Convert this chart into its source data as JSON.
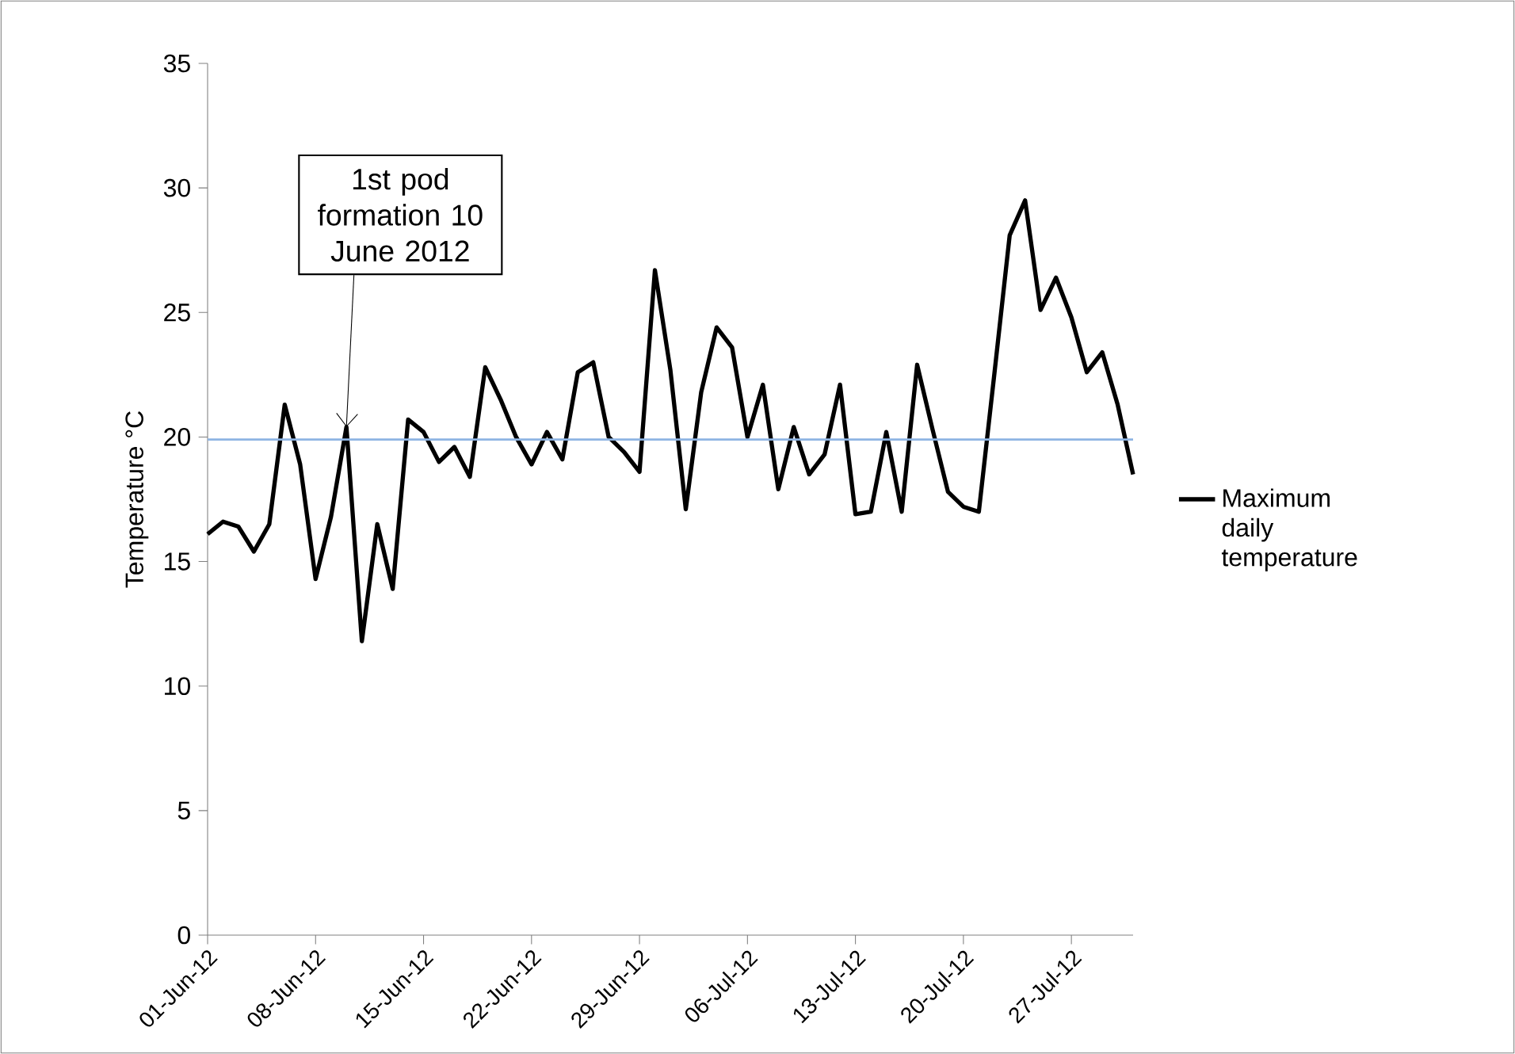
{
  "chart_data": {
    "type": "line",
    "ylabel": "Temperature °C",
    "x": [
      "2012-06-01",
      "2012-06-02",
      "2012-06-03",
      "2012-06-04",
      "2012-06-05",
      "2012-06-06",
      "2012-06-07",
      "2012-06-08",
      "2012-06-09",
      "2012-06-10",
      "2012-06-11",
      "2012-06-12",
      "2012-06-13",
      "2012-06-14",
      "2012-06-15",
      "2012-06-16",
      "2012-06-17",
      "2012-06-18",
      "2012-06-19",
      "2012-06-20",
      "2012-06-21",
      "2012-06-22",
      "2012-06-23",
      "2012-06-24",
      "2012-06-25",
      "2012-06-26",
      "2012-06-27",
      "2012-06-28",
      "2012-06-29",
      "2012-06-30",
      "2012-07-01",
      "2012-07-02",
      "2012-07-03",
      "2012-07-04",
      "2012-07-05",
      "2012-07-06",
      "2012-07-07",
      "2012-07-08",
      "2012-07-09",
      "2012-07-10",
      "2012-07-11",
      "2012-07-12",
      "2012-07-13",
      "2012-07-14",
      "2012-07-15",
      "2012-07-16",
      "2012-07-17",
      "2012-07-18",
      "2012-07-19",
      "2012-07-20",
      "2012-07-21",
      "2012-07-22",
      "2012-07-23",
      "2012-07-24",
      "2012-07-25",
      "2012-07-26",
      "2012-07-27",
      "2012-07-28",
      "2012-07-29",
      "2012-07-30",
      "2012-07-31"
    ],
    "series": [
      {
        "name": "Maximum daily temperature",
        "color": "#000000",
        "values": [
          16.1,
          16.6,
          16.4,
          15.4,
          16.5,
          21.3,
          18.9,
          14.3,
          16.8,
          20.4,
          11.8,
          16.5,
          13.9,
          20.7,
          20.2,
          19.0,
          19.6,
          18.4,
          22.8,
          21.5,
          20.0,
          18.9,
          20.2,
          19.1,
          22.6,
          23.0,
          20.0,
          19.4,
          18.6,
          26.7,
          22.7,
          17.1,
          21.8,
          24.4,
          23.6,
          20.0,
          22.1,
          17.9,
          20.4,
          18.5,
          19.3,
          22.1,
          16.9,
          17.0,
          20.2,
          17.0,
          22.9,
          20.3,
          17.8,
          17.2,
          17.0,
          22.5,
          28.1,
          29.5,
          25.1,
          26.4,
          24.8,
          22.6,
          23.4,
          21.3,
          18.5
        ]
      }
    ],
    "xlim": [
      "2012-06-01",
      "2012-07-31"
    ],
    "xticks": [
      {
        "value": "2012-06-01",
        "label": "01-Jun-12"
      },
      {
        "value": "2012-06-08",
        "label": "08-Jun-12"
      },
      {
        "value": "2012-06-15",
        "label": "15-Jun-12"
      },
      {
        "value": "2012-06-22",
        "label": "22-Jun-12"
      },
      {
        "value": "2012-06-29",
        "label": "29-Jun-12"
      },
      {
        "value": "2012-07-06",
        "label": "06-Jul-12"
      },
      {
        "value": "2012-07-13",
        "label": "13-Jul-12"
      },
      {
        "value": "2012-07-20",
        "label": "20-Jul-12"
      },
      {
        "value": "2012-07-27",
        "label": "27-Jul-12"
      }
    ],
    "ylim": [
      0,
      35
    ],
    "yticks": [
      0,
      5,
      10,
      15,
      20,
      25,
      30,
      35
    ],
    "ref_lines": [
      {
        "axis": "y",
        "value": 19.9,
        "color": "#8eb4e3"
      }
    ],
    "annotations": [
      {
        "text": "1st pod formation 10 June 2012",
        "x": "2012-06-10",
        "y": 20.4
      }
    ],
    "grid": false,
    "legend": "right",
    "marker": "none",
    "line_style": "solid"
  }
}
